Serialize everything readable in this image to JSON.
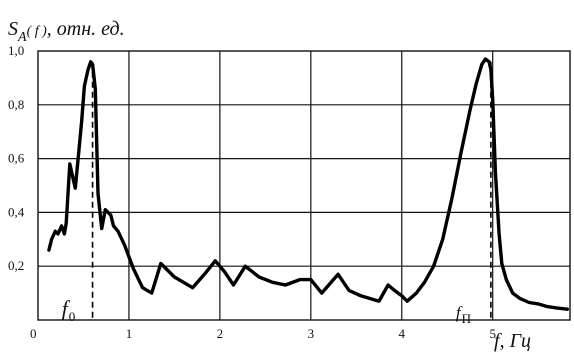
{
  "chart_data": {
    "type": "line",
    "title": "",
    "ylabel": {
      "main": "S",
      "sub": "A",
      "arg": "( f )",
      "units": ", отн. ед."
    },
    "xlabel": {
      "main": "f",
      "units": ", Гц"
    },
    "xlim": [
      0,
      5.85
    ],
    "ylim": [
      0,
      1.0
    ],
    "xticks": [
      1,
      2,
      3,
      4,
      5
    ],
    "xtick_labels": [
      "1",
      "2",
      "3",
      "4",
      "5"
    ],
    "yticks": [
      0.2,
      0.4,
      0.6,
      0.8,
      1.0
    ],
    "ytick_labels": [
      "0,2",
      "0,4",
      "0,6",
      "0,8",
      "1,0"
    ],
    "origin_label": "0",
    "grid": {
      "vertical": true,
      "horizontal": true
    },
    "annotations": [
      {
        "id": "f0",
        "main": "f",
        "sub": "0",
        "x": 0.6
      },
      {
        "id": "fp",
        "main": "f",
        "sub": "П",
        "x": 4.98
      }
    ],
    "series": [
      {
        "x": [
          0.12,
          0.15,
          0.19,
          0.22,
          0.26,
          0.29,
          0.31,
          0.35,
          0.41,
          0.45,
          0.48,
          0.51,
          0.55,
          0.58,
          0.6,
          0.63,
          0.66,
          0.7,
          0.74,
          0.8,
          0.83,
          0.88,
          0.95,
          1.05,
          1.15,
          1.25,
          1.35,
          1.5,
          1.6,
          1.7,
          1.83,
          1.95,
          2.05,
          2.15,
          2.28,
          2.43,
          2.58,
          2.72,
          2.88,
          3.0,
          3.12,
          3.3,
          3.42,
          3.55,
          3.65,
          3.75,
          3.85,
          3.92,
          3.96,
          4.0,
          4.06,
          4.16,
          4.25,
          4.35,
          4.45,
          4.55,
          4.65,
          4.75,
          4.82,
          4.88,
          4.92,
          4.96,
          4.98,
          5.0,
          5.03,
          5.07,
          5.1,
          5.15,
          5.22,
          5.3,
          5.4,
          5.5,
          5.6,
          5.7,
          5.82
        ],
        "y": [
          0.26,
          0.3,
          0.33,
          0.32,
          0.35,
          0.32,
          0.36,
          0.58,
          0.49,
          0.63,
          0.74,
          0.87,
          0.93,
          0.96,
          0.95,
          0.86,
          0.47,
          0.34,
          0.41,
          0.39,
          0.35,
          0.33,
          0.28,
          0.19,
          0.12,
          0.1,
          0.21,
          0.16,
          0.14,
          0.12,
          0.17,
          0.22,
          0.18,
          0.13,
          0.2,
          0.16,
          0.14,
          0.13,
          0.15,
          0.15,
          0.1,
          0.17,
          0.11,
          0.09,
          0.08,
          0.07,
          0.13,
          0.11,
          0.1,
          0.09,
          0.07,
          0.1,
          0.14,
          0.2,
          0.3,
          0.45,
          0.62,
          0.78,
          0.88,
          0.95,
          0.97,
          0.96,
          0.93,
          0.82,
          0.55,
          0.32,
          0.21,
          0.15,
          0.1,
          0.08,
          0.065,
          0.06,
          0.05,
          0.045,
          0.04
        ]
      }
    ]
  }
}
